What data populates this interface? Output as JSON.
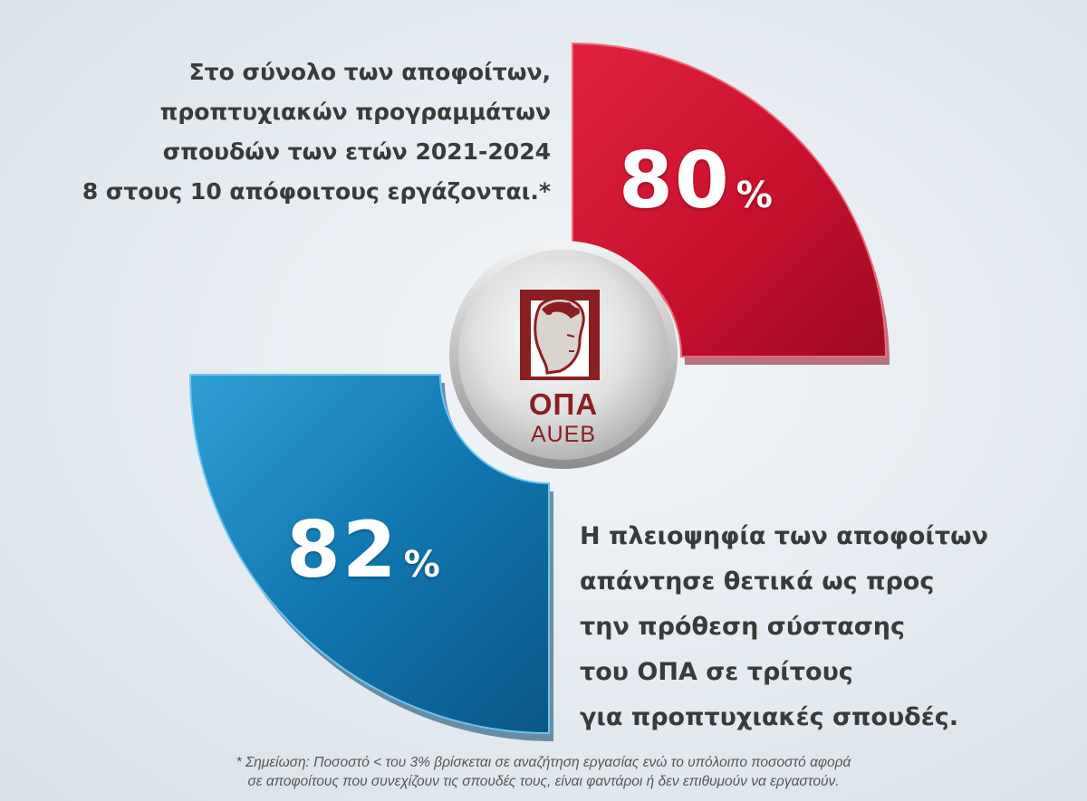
{
  "top_stat": {
    "lines": [
      "Στο σύνολο των αποφοίτων,",
      "προπτυχιακών προγραμμάτων",
      "σπουδών των ετών 2021-2024",
      "8 στους 10 απόφοιτους εργάζονται.*"
    ],
    "value": "80",
    "unit": "%",
    "color": "#c8102e"
  },
  "bottom_stat": {
    "lines": [
      "Η πλειοψηφία των αποφοίτων",
      "απάντησε θετικά ως προς",
      "την πρόθεση σύστασης",
      "του ΟΠΑ σε τρίτους",
      "για προπτυχιακές σπουδές."
    ],
    "value": "82",
    "unit": "%",
    "color": "#1177b0"
  },
  "logo": {
    "name": "ΟΠΑ",
    "subname": "AUEB",
    "icon": "hermes-head-icon",
    "color": "#8a1f22"
  },
  "footnote": {
    "lines": [
      "* Σημείωση: Ποσοστό < του 3%  βρίσκεται σε αναζήτηση εργασίας ενώ το υπόλοιπο ποσοστό αφορά",
      "σε αποφοίτους που συνεχίζουν τις σπουδές τους, είναι φαντάροι ή δεν επιθυμούν να εργαστούν."
    ]
  }
}
